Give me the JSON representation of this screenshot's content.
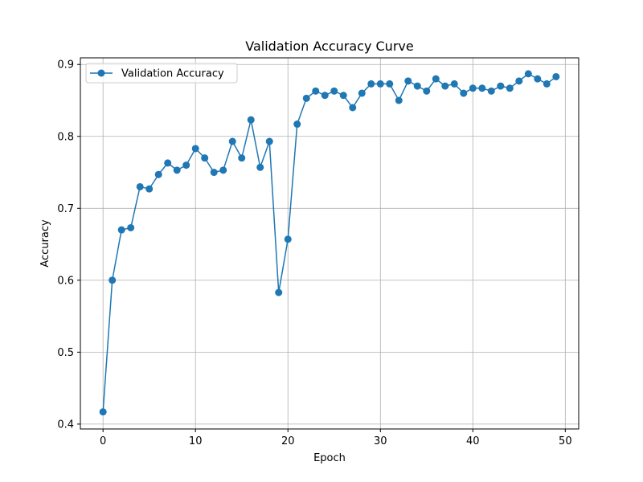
{
  "chart_data": {
    "type": "line",
    "title": "Validation Accuracy Curve",
    "xlabel": "Epoch",
    "ylabel": "Accuracy",
    "xlim": [
      -2.45,
      51.45
    ],
    "ylim": [
      0.3932,
      0.9092
    ],
    "xticks": [
      0,
      10,
      20,
      30,
      40,
      50
    ],
    "yticks": [
      0.4,
      0.5,
      0.6,
      0.7,
      0.8,
      0.9
    ],
    "xtick_labels": [
      "0",
      "10",
      "20",
      "30",
      "40",
      "50"
    ],
    "ytick_labels": [
      "0.4",
      "0.5",
      "0.6",
      "0.7",
      "0.8",
      "0.9"
    ],
    "grid": true,
    "legend_position": "upper-left",
    "series": [
      {
        "name": "Validation Accuracy",
        "color": "#1f77b4",
        "marker": "circle",
        "x": [
          0,
          1,
          2,
          3,
          4,
          5,
          6,
          7,
          8,
          9,
          10,
          11,
          12,
          13,
          14,
          15,
          16,
          17,
          18,
          19,
          20,
          21,
          22,
          23,
          24,
          25,
          26,
          27,
          28,
          29,
          30,
          31,
          32,
          33,
          34,
          35,
          36,
          37,
          38,
          39,
          40,
          41,
          42,
          43,
          44,
          45,
          46,
          47,
          48,
          49
        ],
        "values": [
          0.417,
          0.6,
          0.67,
          0.673,
          0.73,
          0.727,
          0.747,
          0.763,
          0.753,
          0.76,
          0.783,
          0.77,
          0.75,
          0.753,
          0.793,
          0.77,
          0.823,
          0.757,
          0.793,
          0.583,
          0.657,
          0.817,
          0.853,
          0.863,
          0.857,
          0.863,
          0.857,
          0.84,
          0.86,
          0.873,
          0.873,
          0.873,
          0.85,
          0.877,
          0.87,
          0.863,
          0.88,
          0.87,
          0.873,
          0.86,
          0.867,
          0.867,
          0.863,
          0.87,
          0.867,
          0.877,
          0.887,
          0.88,
          0.873,
          0.883
        ]
      }
    ]
  }
}
